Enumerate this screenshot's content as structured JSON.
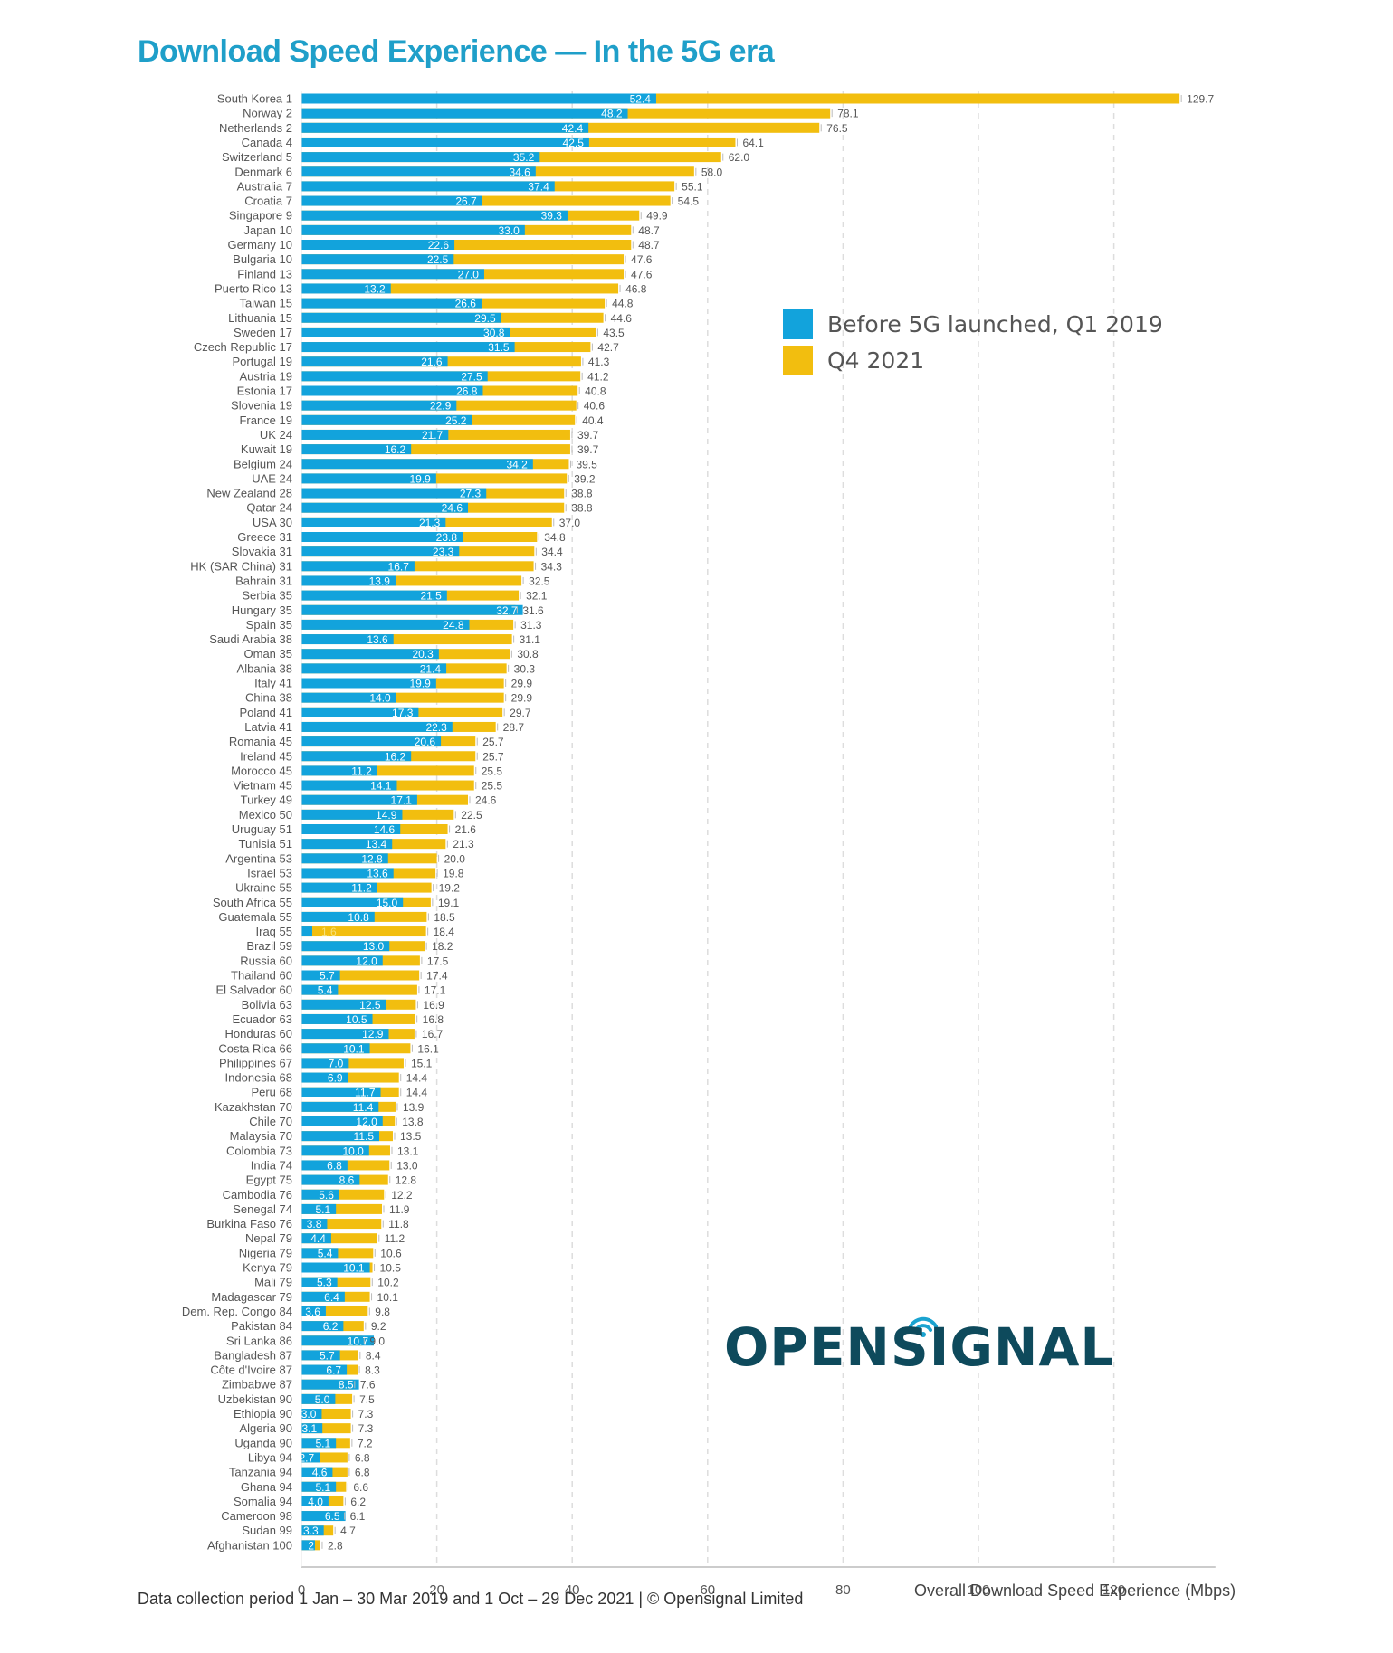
{
  "chart_data": {
    "type": "bar",
    "stacking": "overlay",
    "title": "Download Speed Experience — In the 5G era",
    "xlabel": "Overall Download Speed Experience (Mbps)",
    "ylabel": "",
    "xlim": [
      0,
      135
    ],
    "xticks": [
      0,
      20,
      40,
      60,
      80,
      100,
      120
    ],
    "grid": true,
    "legend_position": "upper-right",
    "footer": "Data collection period 1 Jan – 30 Mar 2019 and 1 Oct – 29 Dec 2021 | © Opensignal Limited",
    "logo": "OPENSIGNAL",
    "colors": {
      "before": "#12a3dc",
      "q4_2021": "#f2be0f",
      "title": "#1f9fc9",
      "logo": "#0e4a5c"
    },
    "series": [
      {
        "name": "Before 5G launched, Q1 2019",
        "key": "before"
      },
      {
        "name": "Q4 2021",
        "key": "q4_2021"
      }
    ],
    "categories": [
      "South Korea 1",
      "Norway 2",
      "Netherlands 2",
      "Canada 4",
      "Switzerland 5",
      "Denmark 6",
      "Australia 7",
      "Croatia 7",
      "Singapore 9",
      "Japan 10",
      "Germany 10",
      "Bulgaria 10",
      "Finland 13",
      "Puerto Rico 13",
      "Taiwan 15",
      "Lithuania 15",
      "Sweden 17",
      "Czech Republic 17",
      "Portugal 19",
      "Austria 19",
      "Estonia 17",
      "Slovenia 19",
      "France 19",
      "UK 24",
      "Kuwait 19",
      "Belgium 24",
      "UAE 24",
      "New Zealand 28",
      "Qatar 24",
      "USA 30",
      "Greece 31",
      "Slovakia 31",
      "HK (SAR China) 31",
      "Bahrain 31",
      "Serbia 35",
      "Hungary 35",
      "Spain 35",
      "Saudi Arabia 38",
      "Oman 35",
      "Albania 38",
      "Italy 41",
      "China 38",
      "Poland 41",
      "Latvia 41",
      "Romania 45",
      "Ireland 45",
      "Morocco 45",
      "Vietnam 45",
      "Turkey 49",
      "Mexico 50",
      "Uruguay 51",
      "Tunisia 51",
      "Argentina 53",
      "Israel 53",
      "Ukraine 55",
      "South Africa 55",
      "Guatemala 55",
      "Iraq 55",
      "Brazil 59",
      "Russia 60",
      "Thailand 60",
      "El Salvador 60",
      "Bolivia 63",
      "Ecuador 63",
      "Honduras 60",
      "Costa Rica 66",
      "Philippines 67",
      "Indonesia 68",
      "Peru 68",
      "Kazakhstan 70",
      "Chile 70",
      "Malaysia 70",
      "Colombia 73",
      "India 74",
      "Egypt 75",
      "Cambodia 76",
      "Senegal 74",
      "Burkina Faso 76",
      "Nepal 79",
      "Nigeria 79",
      "Kenya 79",
      "Mali 79",
      "Madagascar 79",
      "Dem. Rep. Congo 84",
      "Pakistan 84",
      "Sri Lanka 86",
      "Bangladesh 87",
      "Côte d'Ivoire 87",
      "Zimbabwe 87",
      "Uzbekistan 90",
      "Ethiopia 90",
      "Algeria 90",
      "Uganda 90",
      "Libya 94",
      "Tanzania 94",
      "Ghana 94",
      "Somalia 94",
      "Cameroon 98",
      "Sudan 99",
      "Afghanistan 100"
    ],
    "before": [
      52.4,
      48.2,
      42.4,
      42.5,
      35.2,
      34.6,
      37.4,
      26.7,
      39.3,
      33.0,
      22.6,
      22.5,
      27.0,
      13.2,
      26.6,
      29.5,
      30.8,
      31.5,
      21.6,
      27.5,
      26.8,
      22.9,
      25.2,
      21.7,
      16.2,
      34.2,
      19.9,
      27.3,
      24.6,
      21.3,
      23.8,
      23.3,
      16.7,
      13.9,
      21.5,
      32.7,
      24.8,
      13.6,
      20.3,
      21.4,
      19.9,
      14.0,
      17.3,
      22.3,
      20.6,
      16.2,
      11.2,
      14.1,
      17.1,
      14.9,
      14.6,
      13.4,
      12.8,
      13.6,
      11.2,
      15.0,
      10.8,
      1.6,
      13.0,
      12.0,
      5.7,
      5.4,
      12.5,
      10.5,
      12.9,
      10.1,
      7.0,
      6.9,
      11.7,
      11.4,
      12.0,
      11.5,
      10.0,
      6.8,
      8.6,
      5.6,
      5.1,
      3.8,
      4.4,
      5.4,
      10.1,
      5.3,
      6.4,
      3.6,
      6.2,
      10.7,
      5.7,
      6.7,
      8.5,
      5.0,
      3.0,
      3.1,
      5.1,
      2.7,
      4.6,
      5.1,
      4.0,
      6.5,
      3.3,
      2.0
    ],
    "before_labels": [
      "52.4",
      "48.2",
      "42.4",
      "42.5",
      "35.2",
      "34.6",
      "37.4",
      "26.7",
      "39.3",
      "33.0",
      "22.6",
      "22.5",
      "27.0",
      "13.2",
      "26.6",
      "29.5",
      "30.8",
      "31.5",
      "21.6",
      "27.5",
      "26.8",
      "22.9",
      "25.2",
      "21.7",
      "16.2",
      "34.2",
      "19.9",
      "27.3",
      "24.6",
      "21.3",
      "23.8",
      "23.3",
      "16.7",
      "13.9",
      "21.5",
      "32.7",
      "24.8",
      "13.6",
      "20.3",
      "21.4",
      "19.9",
      "14.0",
      "17.3",
      "22.3",
      "20.6",
      "16.2",
      "11.2",
      "14.1",
      "17.1",
      "14.9",
      "14.6",
      "13.4",
      "12.8",
      "13.6",
      "11.2",
      "15.0",
      "10.8",
      "1.6",
      "13.0",
      "12.0",
      "5.7",
      "5.4",
      "12.5",
      "10.5",
      "12.9",
      "10.1",
      "7.0",
      "6.9",
      "11.7",
      "11.4",
      "12.0",
      "11.5",
      "10.0",
      "6.8",
      "8.6",
      "5.6",
      "5.1",
      "3.8",
      "4.4",
      "5.4",
      "10.1",
      "5.3",
      "6.4",
      "3.6",
      "6.2",
      "10.7",
      "5.7",
      "6.7",
      "8.5",
      "5.0",
      "3.0",
      "3.1",
      "5.1",
      "2.7",
      "4.6",
      "5.1",
      "4.0",
      "6.5",
      "3.3",
      "2"
    ],
    "q4_2021": [
      129.7,
      78.1,
      76.5,
      64.1,
      62.0,
      58.0,
      55.1,
      54.5,
      49.9,
      48.7,
      48.7,
      47.6,
      47.6,
      46.8,
      44.8,
      44.6,
      43.5,
      42.7,
      41.3,
      41.2,
      40.8,
      40.6,
      40.4,
      39.7,
      39.7,
      39.5,
      39.2,
      38.8,
      38.8,
      37.0,
      34.8,
      34.4,
      34.3,
      32.5,
      32.1,
      31.6,
      31.3,
      31.1,
      30.8,
      30.3,
      29.9,
      29.9,
      29.7,
      28.7,
      25.7,
      25.7,
      25.5,
      25.5,
      24.6,
      22.5,
      21.6,
      21.3,
      20.0,
      19.8,
      19.2,
      19.1,
      18.5,
      18.4,
      18.2,
      17.5,
      17.4,
      17.1,
      16.9,
      16.8,
      16.7,
      16.1,
      15.1,
      14.4,
      14.4,
      13.9,
      13.8,
      13.5,
      13.1,
      13.0,
      12.8,
      12.2,
      11.9,
      11.8,
      11.2,
      10.6,
      10.5,
      10.2,
      10.1,
      9.8,
      9.2,
      9.0,
      8.4,
      8.3,
      7.6,
      7.5,
      7.3,
      7.3,
      7.2,
      6.8,
      6.8,
      6.6,
      6.2,
      6.1,
      4.7,
      2.8
    ]
  }
}
